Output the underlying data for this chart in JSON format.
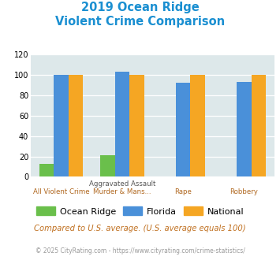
{
  "title_line1": "2019 Ocean Ridge",
  "title_line2": "Violent Crime Comparison",
  "cat_labels_top": [
    "",
    "Aggravated Assault",
    "",
    ""
  ],
  "cat_labels_bot": [
    "All Violent Crime",
    "Murder & Mans...",
    "Rape",
    "Robbery"
  ],
  "ocean_ridge": [
    13,
    21,
    0,
    0
  ],
  "florida": [
    100,
    103,
    92,
    93
  ],
  "national": [
    100,
    100,
    100,
    100
  ],
  "colors": {
    "ocean_ridge": "#6abf4b",
    "florida": "#4a90d9",
    "national": "#f5a623",
    "background": "#dde8ea",
    "title": "#1a8fd1",
    "grid": "#ffffff",
    "xlabel_top": "#555555",
    "xlabel_bot": "#b06820",
    "note": "#c07020",
    "footer": "#999999",
    "fig_bg": "#ffffff"
  },
  "ylim": [
    0,
    120
  ],
  "yticks": [
    0,
    20,
    40,
    60,
    80,
    100,
    120
  ],
  "legend_labels": [
    "Ocean Ridge",
    "Florida",
    "National"
  ],
  "note": "Compared to U.S. average. (U.S. average equals 100)",
  "footer": "© 2025 CityRating.com - https://www.cityrating.com/crime-statistics/"
}
